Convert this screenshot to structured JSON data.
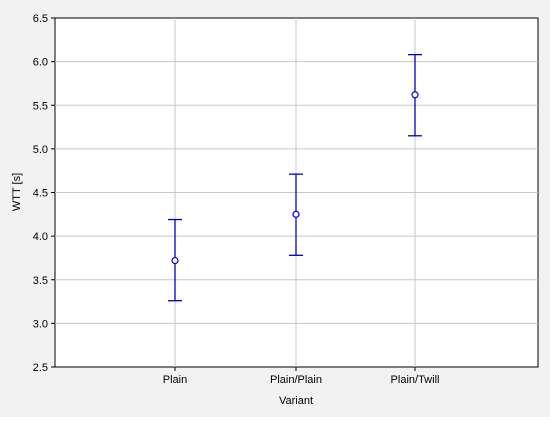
{
  "chart_data": {
    "type": "scatter",
    "title": "",
    "xlabel": "Variant",
    "ylabel": "WTT  [s]",
    "categories": [
      "Plain",
      "Plain/Plain",
      "Plain/Twill"
    ],
    "series": [
      {
        "values": [
          3.72,
          4.25,
          5.62
        ],
        "error_low": [
          3.26,
          3.78,
          5.15
        ],
        "error_high": [
          4.19,
          4.71,
          6.08
        ]
      }
    ],
    "ylim": [
      2.5,
      6.5
    ],
    "yticks": [
      "2.5",
      "3.0",
      "3.5",
      "4.0",
      "4.5",
      "5.0",
      "5.5",
      "6.0",
      "6.5"
    ],
    "grid": true,
    "legend": "none",
    "colors": {
      "series": "#0000cc",
      "grid": "#c8c8c8",
      "axes": "#000000",
      "background": "#f2f2f2"
    }
  }
}
